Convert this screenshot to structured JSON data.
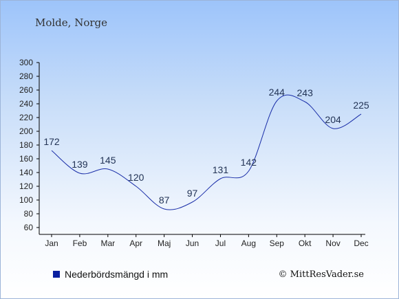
{
  "chart_data": {
    "type": "line",
    "title": "Molde, Norge",
    "categories": [
      "Jan",
      "Feb",
      "Mar",
      "Apr",
      "Maj",
      "Jun",
      "Jul",
      "Aug",
      "Sep",
      "Okt",
      "Nov",
      "Dec"
    ],
    "series": [
      {
        "name": "Nederbördsmängd i mm",
        "values": [
          172,
          139,
          145,
          120,
          87,
          97,
          131,
          142,
          244,
          243,
          204,
          225
        ]
      }
    ],
    "y_ticks": [
      60,
      80,
      100,
      120,
      140,
      160,
      180,
      200,
      220,
      240,
      260,
      280,
      300
    ],
    "ylim": [
      60,
      300
    ],
    "grid": false,
    "legend_position": "bottom-left",
    "line_color": "#1a2ea8",
    "legend_color": "#0a1fa0"
  },
  "copyright": "© MittResVader.se"
}
